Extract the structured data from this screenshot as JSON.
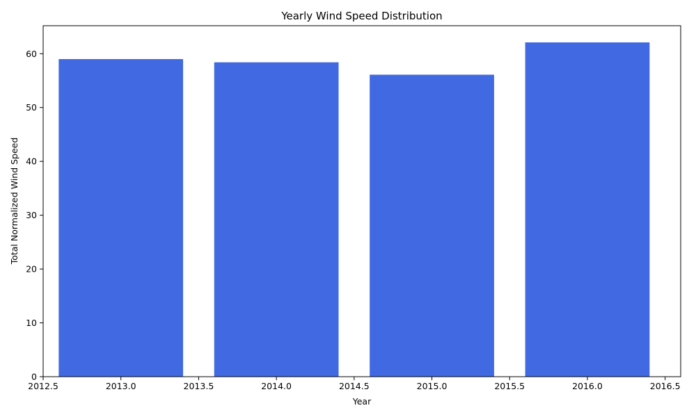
{
  "chart_data": {
    "type": "bar",
    "title": "Yearly Wind Speed Distribution",
    "xlabel": "Year",
    "ylabel": "Total Normalized Wind Speed",
    "x": [
      2013,
      2014,
      2015,
      2016
    ],
    "values": [
      59.0,
      58.4,
      56.1,
      62.1
    ],
    "bar_width": 0.8,
    "xlim": [
      2012.5,
      2016.6
    ],
    "ylim": [
      0,
      65.2
    ],
    "xticks": [
      2012.5,
      2013.0,
      2013.5,
      2014.0,
      2014.5,
      2015.0,
      2015.5,
      2016.0,
      2016.5
    ],
    "xtick_labels": [
      "2012.5",
      "2013.0",
      "2013.5",
      "2014.0",
      "2014.5",
      "2015.0",
      "2015.5",
      "2016.0",
      "2016.5"
    ],
    "yticks": [
      0,
      10,
      20,
      30,
      40,
      50,
      60
    ],
    "ytick_labels": [
      "0",
      "10",
      "20",
      "30",
      "40",
      "50",
      "60"
    ],
    "grid": false,
    "bar_color": "#4169e1"
  }
}
